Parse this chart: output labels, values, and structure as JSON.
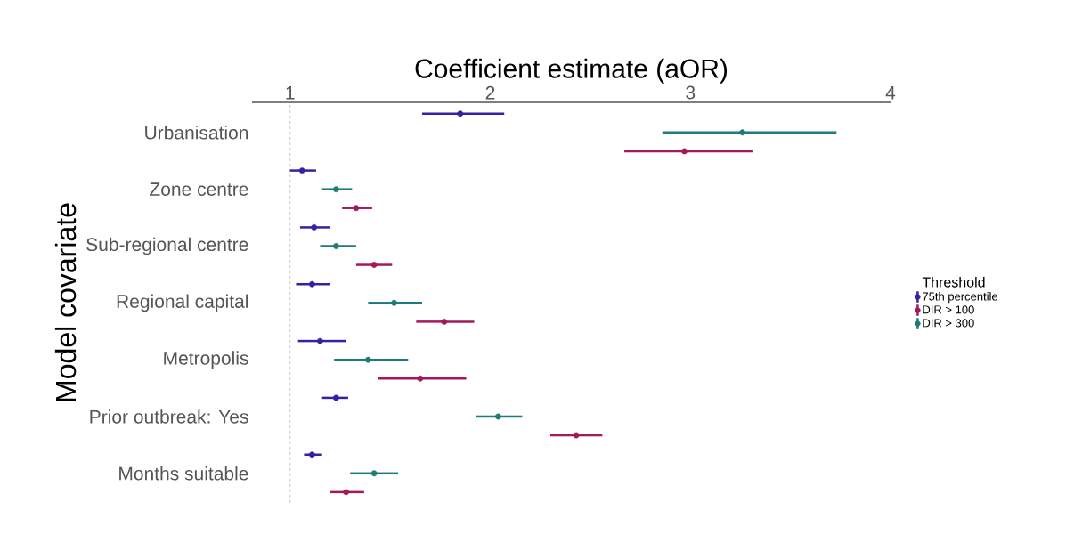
{
  "chart_data": {
    "type": "scatter",
    "orientation": "horizontal",
    "xlabel": "Coefficient estimate (aOR)",
    "ylabel": "Model covariate",
    "legend_title": "Threshold",
    "legend": "right",
    "marker": "circle",
    "categories": [
      "Urbanisation",
      "Zone centre",
      "Sub-regional centre",
      "Regional capital",
      "Metropolis",
      "Prior outbreak: Yes",
      "Months suitable"
    ],
    "xlim": [
      0.81,
      4.0
    ],
    "xticks": [
      1,
      2,
      3,
      4
    ],
    "ref_lines": [
      {
        "axis": "x",
        "value": 1,
        "line_style": "dashed",
        "color": "#bbbbbb"
      }
    ],
    "series": [
      {
        "name": "75th percentile",
        "color": "#3b1fa3",
        "values": [
          1.85,
          1.06,
          1.12,
          1.11,
          1.15,
          1.23,
          1.11
        ],
        "errors": [
          [
            1.66,
            2.07
          ],
          [
            1.0,
            1.13
          ],
          [
            1.05,
            1.2
          ],
          [
            1.03,
            1.2
          ],
          [
            1.04,
            1.28
          ],
          [
            1.16,
            1.29
          ],
          [
            1.07,
            1.16
          ]
        ]
      },
      {
        "name": "DIR > 100",
        "color": "#a3195b",
        "values": [
          2.97,
          1.33,
          1.42,
          1.77,
          1.65,
          2.43,
          1.28
        ],
        "errors": [
          [
            2.67,
            3.31
          ],
          [
            1.26,
            1.41
          ],
          [
            1.33,
            1.51
          ],
          [
            1.63,
            1.92
          ],
          [
            1.44,
            1.88
          ],
          [
            2.3,
            2.56
          ],
          [
            1.2,
            1.37
          ]
        ]
      },
      {
        "name": "DIR > 300",
        "color": "#1f7a7a",
        "values": [
          3.26,
          1.23,
          1.23,
          1.52,
          1.39,
          2.04,
          1.42
        ],
        "errors": [
          [
            2.86,
            3.73
          ],
          [
            1.16,
            1.31
          ],
          [
            1.15,
            1.33
          ],
          [
            1.39,
            1.66
          ],
          [
            1.22,
            1.59
          ],
          [
            1.93,
            2.16
          ],
          [
            1.3,
            1.54
          ]
        ]
      }
    ]
  }
}
